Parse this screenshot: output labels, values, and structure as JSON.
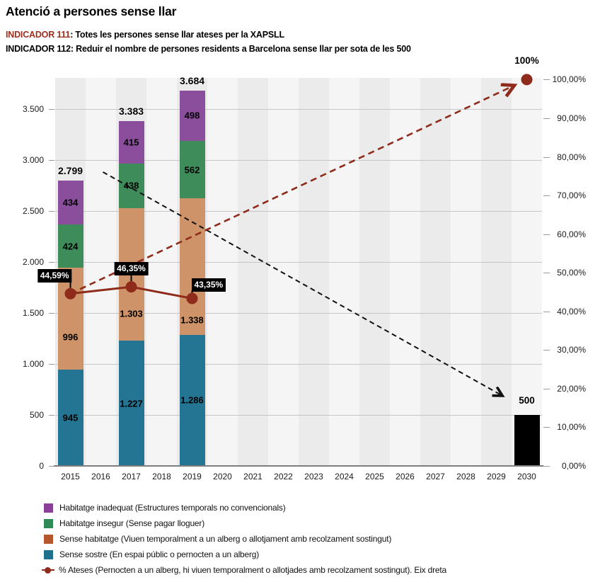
{
  "title": "Atenció a persones sense llar",
  "indicators": [
    {
      "label": "INDICADOR 111",
      "text": ": Totes les persones sense llar ateses per la XAPSLL"
    },
    {
      "label": "INDICADOR 112",
      "text": ": Reduir el nombre de persones residents a Barcelona sense llar per sota de les 500"
    }
  ],
  "colors": {
    "indicator_red": "#9E2F1E",
    "accent_line_red": "#8E2B1A",
    "arrow_black": "#111111",
    "stripe_dark": "#EBEBEB",
    "stripe_light": "#F5F5F5"
  },
  "chart_data": {
    "type": "bar",
    "subtype": "stacked-bars-with-percentage-line",
    "categories": [
      "2015",
      "2016",
      "2017",
      "2018",
      "2019",
      "2020",
      "2021",
      "2022",
      "2023",
      "2024",
      "2025",
      "2026",
      "2027",
      "2028",
      "2029",
      "2030"
    ],
    "left_axis": {
      "ticks": [
        {
          "value": 0,
          "label": "0"
        },
        {
          "value": 500,
          "label": "500"
        },
        {
          "value": 1000,
          "label": "1.000"
        },
        {
          "value": 1500,
          "label": "1.500"
        },
        {
          "value": 2000,
          "label": "2.000"
        },
        {
          "value": 2500,
          "label": "2.500"
        },
        {
          "value": 3000,
          "label": "3.000"
        },
        {
          "value": 3500,
          "label": "3.500"
        }
      ]
    },
    "right_axis": {
      "ticks": [
        {
          "value": 0,
          "label": "0,00%"
        },
        {
          "value": 10,
          "label": "10,00%"
        },
        {
          "value": 20,
          "label": "20,00%"
        },
        {
          "value": 30,
          "label": "30,00%"
        },
        {
          "value": 40,
          "label": "40,00%"
        },
        {
          "value": 50,
          "label": "50,00%"
        },
        {
          "value": 60,
          "label": "60,00%"
        },
        {
          "value": 70,
          "label": "70,00%"
        },
        {
          "value": 80,
          "label": "80,00%"
        },
        {
          "value": 90,
          "label": "90,00%"
        },
        {
          "value": 100,
          "label": "100,00%"
        }
      ]
    },
    "series": [
      {
        "name": "Sense sostre (En espai públic o pernocten a un alberg)",
        "color": "#247593"
      },
      {
        "name": "Sense habitatge (Viuen temporalment a un alberg o allotjament amb recolzament sostingut)",
        "color": "#CE9368"
      },
      {
        "name": "Habitatge insegur (Sense pagar lloguer)",
        "color": "#3E8C5A"
      },
      {
        "name": "Habitatge inadequat (Estructures temporals no convencionals)",
        "color": "#8A4E9D"
      }
    ],
    "bars": [
      {
        "year": "2015",
        "values": [
          945,
          996,
          424,
          434
        ],
        "value_labels": [
          "945",
          "996",
          "424",
          "434"
        ],
        "total": 2799,
        "total_label": "2.799"
      },
      {
        "year": "2017",
        "values": [
          1227,
          1303,
          438,
          415
        ],
        "value_labels": [
          "1.227",
          "1.303",
          "438",
          "415"
        ],
        "total": 3383,
        "total_label": "3.383"
      },
      {
        "year": "2019",
        "values": [
          1286,
          1338,
          562,
          498
        ],
        "value_labels": [
          "1.286",
          "1.338",
          "562",
          "498"
        ],
        "total": 3684,
        "total_label": "3.684"
      }
    ],
    "target_bar": {
      "year": "2030",
      "value": 500,
      "label": "500",
      "color": "#000000"
    },
    "pct_line": {
      "name": "% Ateses",
      "color": "#8E2B1A",
      "points": [
        {
          "year": "2015",
          "value": 44.59,
          "label": "44,59%"
        },
        {
          "year": "2017",
          "value": 46.35,
          "label": "46,35%"
        },
        {
          "year": "2019",
          "value": 43.35,
          "label": "43,35%"
        }
      ],
      "target_point": {
        "year": "2030",
        "value": 100,
        "label": "100%"
      }
    },
    "trend_arrows": [
      {
        "name": "target-500-arrow",
        "style": "dashed-black",
        "from": {
          "year": "2015",
          "left_value": 2799
        },
        "to": {
          "year": "2030",
          "left_value": 500
        }
      },
      {
        "name": "target-100pct-arrow",
        "style": "dashed-red",
        "from": {
          "year": "2015",
          "right_value": 44.59
        },
        "to": {
          "year": "2030",
          "right_value": 100
        }
      }
    ]
  },
  "legend": [
    {
      "marker": "square",
      "color": "#8A3F99",
      "label": "Habitatge inadequat (Estructures temporals no convencionals)"
    },
    {
      "marker": "square",
      "color": "#2E8B55",
      "label": "Habitatge insegur (Sense pagar lloguer)"
    },
    {
      "marker": "square",
      "color": "#B5562C",
      "label": "Sense habitatge (Viuen temporalment a un alberg o allotjament amb recolzament sostingut)"
    },
    {
      "marker": "square",
      "color": "#1F708C",
      "label": "Sense sostre (En espai públic o pernocten a un alberg)"
    },
    {
      "marker": "line-dot",
      "color": "#8E2B1A",
      "label": "% Ateses (Pernocten a un alberg, hi viuen temporalment o allotjades amb recolzament sostingut). Eix dreta"
    }
  ]
}
